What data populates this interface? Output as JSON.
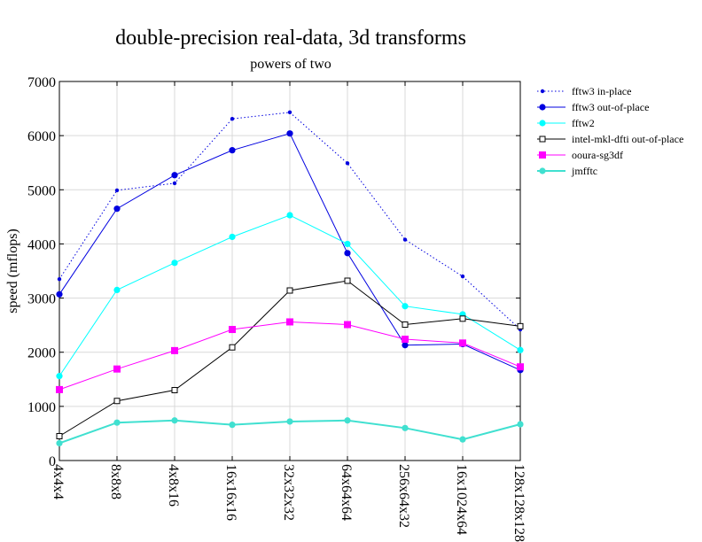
{
  "chart_data": {
    "type": "line",
    "title": "double-precision real-data, 3d transforms",
    "subtitle": "powers of two",
    "xlabel": "",
    "ylabel": "speed (mflops)",
    "ylim": [
      0,
      7000
    ],
    "yticks": [
      0,
      1000,
      2000,
      3000,
      4000,
      5000,
      6000,
      7000
    ],
    "grid": true,
    "legend_position": "right",
    "categories": [
      "4x4x4",
      "8x8x8",
      "4x8x16",
      "16x16x16",
      "32x32x32",
      "64x64x64",
      "256x64x32",
      "16x1024x64",
      "128x128x128"
    ],
    "series": [
      {
        "name": "fftw3 in-place",
        "color": "#0000e0",
        "style": "dotted",
        "marker": "small-dot",
        "values": [
          3350,
          4990,
          5120,
          6310,
          6430,
          5490,
          4080,
          3400,
          2420
        ]
      },
      {
        "name": "fftw3 out-of-place",
        "color": "#0000e0",
        "style": "solid",
        "marker": "dot",
        "values": [
          3070,
          4650,
          5270,
          5730,
          6040,
          3830,
          2130,
          2150,
          1670
        ]
      },
      {
        "name": "fftw2",
        "color": "#00ffff",
        "style": "solid",
        "marker": "dot",
        "values": [
          1560,
          3150,
          3650,
          4130,
          4530,
          4000,
          2850,
          2700,
          2040
        ]
      },
      {
        "name": "intel-mkl-dfti out-of-place",
        "color": "#000000",
        "style": "solid",
        "marker": "open-square",
        "values": [
          450,
          1100,
          1300,
          2090,
          3140,
          3320,
          2510,
          2620,
          2480
        ]
      },
      {
        "name": "ooura-sg3df",
        "color": "#ff00ff",
        "style": "solid",
        "marker": "square",
        "values": [
          1310,
          1690,
          2030,
          2420,
          2560,
          2510,
          2240,
          2170,
          1730
        ]
      },
      {
        "name": "jmfftc",
        "color": "#40e0d0",
        "style": "thick",
        "marker": "dot",
        "values": [
          320,
          700,
          740,
          660,
          720,
          740,
          600,
          390,
          670
        ]
      }
    ]
  }
}
